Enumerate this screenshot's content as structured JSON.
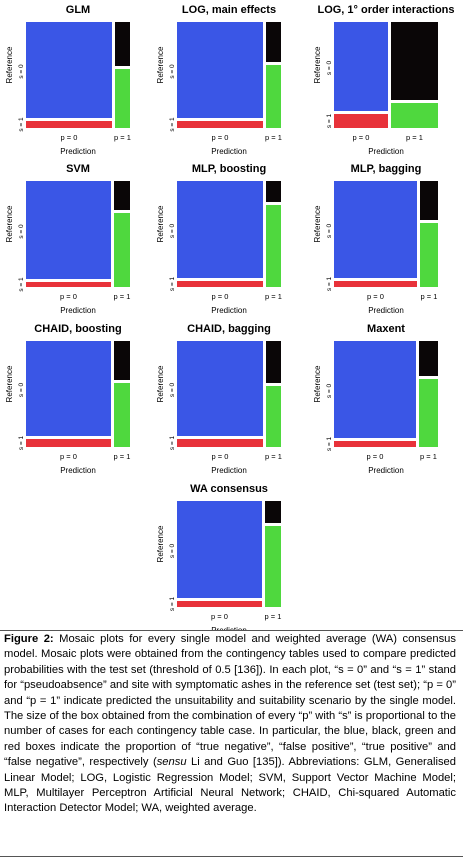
{
  "colors": {
    "true_negative": "#3a56e6",
    "false_positive": "#0a0607",
    "true_positive": "#4fd83e",
    "false_negative": "#e8323a"
  },
  "chart_data": [
    {
      "type": "mosaic",
      "title": "GLM",
      "xlabel": "Prediction",
      "ylabel": "Reference",
      "x_ticks": [
        "p = 0",
        "p = 1"
      ],
      "y_ticks": [
        "s = 0",
        "s = 1"
      ],
      "p0_share": 0.83,
      "s1_given_p0": 0.07,
      "s1_given_p1": 0.56
    },
    {
      "type": "mosaic",
      "title": "LOG, main effects",
      "xlabel": "Prediction",
      "ylabel": "Reference",
      "x_ticks": [
        "p = 0",
        "p = 1"
      ],
      "y_ticks": [
        "s = 0",
        "s = 1"
      ],
      "p0_share": 0.83,
      "s1_given_p0": 0.07,
      "s1_given_p1": 0.59
    },
    {
      "type": "mosaic",
      "title": "LOG, 1° order interactions",
      "xlabel": "Prediction",
      "ylabel": "Reference",
      "x_ticks": [
        "p = 0",
        "p = 1"
      ],
      "y_ticks": [
        "s = 0",
        "s = 1"
      ],
      "p0_share": 0.52,
      "s1_given_p0": 0.13,
      "s1_given_p1": 0.24
    },
    {
      "type": "mosaic",
      "title": "SVM",
      "xlabel": "Prediction",
      "ylabel": "Reference",
      "x_ticks": [
        "p = 0",
        "p = 1"
      ],
      "y_ticks": [
        "s = 0",
        "s = 1"
      ],
      "p0_share": 0.82,
      "s1_given_p0": 0.05,
      "s1_given_p1": 0.7
    },
    {
      "type": "mosaic",
      "title": "MLP, boosting",
      "xlabel": "Prediction",
      "ylabel": "Reference",
      "x_ticks": [
        "p = 0",
        "p = 1"
      ],
      "y_ticks": [
        "s = 0",
        "s = 1"
      ],
      "p0_share": 0.83,
      "s1_given_p0": 0.06,
      "s1_given_p1": 0.77
    },
    {
      "type": "mosaic",
      "title": "MLP, bagging",
      "xlabel": "Prediction",
      "ylabel": "Reference",
      "x_ticks": [
        "p = 0",
        "p = 1"
      ],
      "y_ticks": [
        "s = 0",
        "s = 1"
      ],
      "p0_share": 0.8,
      "s1_given_p0": 0.06,
      "s1_given_p1": 0.6
    },
    {
      "type": "mosaic",
      "title": "CHAID, boosting",
      "xlabel": "Prediction",
      "ylabel": "Reference",
      "x_ticks": [
        "p = 0",
        "p = 1"
      ],
      "y_ticks": [
        "s = 0",
        "s = 1"
      ],
      "p0_share": 0.82,
      "s1_given_p0": 0.08,
      "s1_given_p1": 0.6
    },
    {
      "type": "mosaic",
      "title": "CHAID, bagging",
      "xlabel": "Prediction",
      "ylabel": "Reference",
      "x_ticks": [
        "p = 0",
        "p = 1"
      ],
      "y_ticks": [
        "s = 0",
        "s = 1"
      ],
      "p0_share": 0.83,
      "s1_given_p0": 0.08,
      "s1_given_p1": 0.58
    },
    {
      "type": "mosaic",
      "title": "Maxent",
      "xlabel": "Prediction",
      "ylabel": "Reference",
      "x_ticks": [
        "p = 0",
        "p = 1"
      ],
      "y_ticks": [
        "s = 0",
        "s = 1"
      ],
      "p0_share": 0.79,
      "s1_given_p0": 0.06,
      "s1_given_p1": 0.64
    },
    {
      "type": "mosaic",
      "title": "WA consensus",
      "xlabel": "Prediction",
      "ylabel": "Reference",
      "x_ticks": [
        "p = 0",
        "p = 1"
      ],
      "y_ticks": [
        "s = 0",
        "s = 1"
      ],
      "p0_share": 0.82,
      "s1_given_p0": 0.06,
      "s1_given_p1": 0.76
    }
  ],
  "caption": {
    "label": "Figure 2:",
    "part1": " Mosaic plots for every single model and weighted average (WA) consensus model. Mosaic plots were obtained from the contingency tables used to compare predicted probabilities with the test set (threshold of 0.5 [136]). In each plot, “s = 0” and “s = 1” stand for “pseudoabsence” and site with symptomatic ashes in the reference set (test set); “p = 0” and “p = 1” indicate predicted the unsuitability and suitability scenario by the single model. The size of the box obtained from the combination of every “p” with “s” is proportional to the number of cases for each contingency table case. In particular, the blue, black, green and red boxes indicate the proportion of “true negative”, “false positive”, “true positive” and “false negative”, respectively (",
    "sensu": "sensu",
    "part2": " Li and Guo [135]). Abbreviations: GLM, Generalised Linear Model; LOG, Logistic Regression Model; SVM, Support Vector Machine Model; MLP, Multilayer Perceptron Artificial Neural Network; CHAID, Chi-squared Automatic Interaction Detector Model; WA, weighted average."
  }
}
